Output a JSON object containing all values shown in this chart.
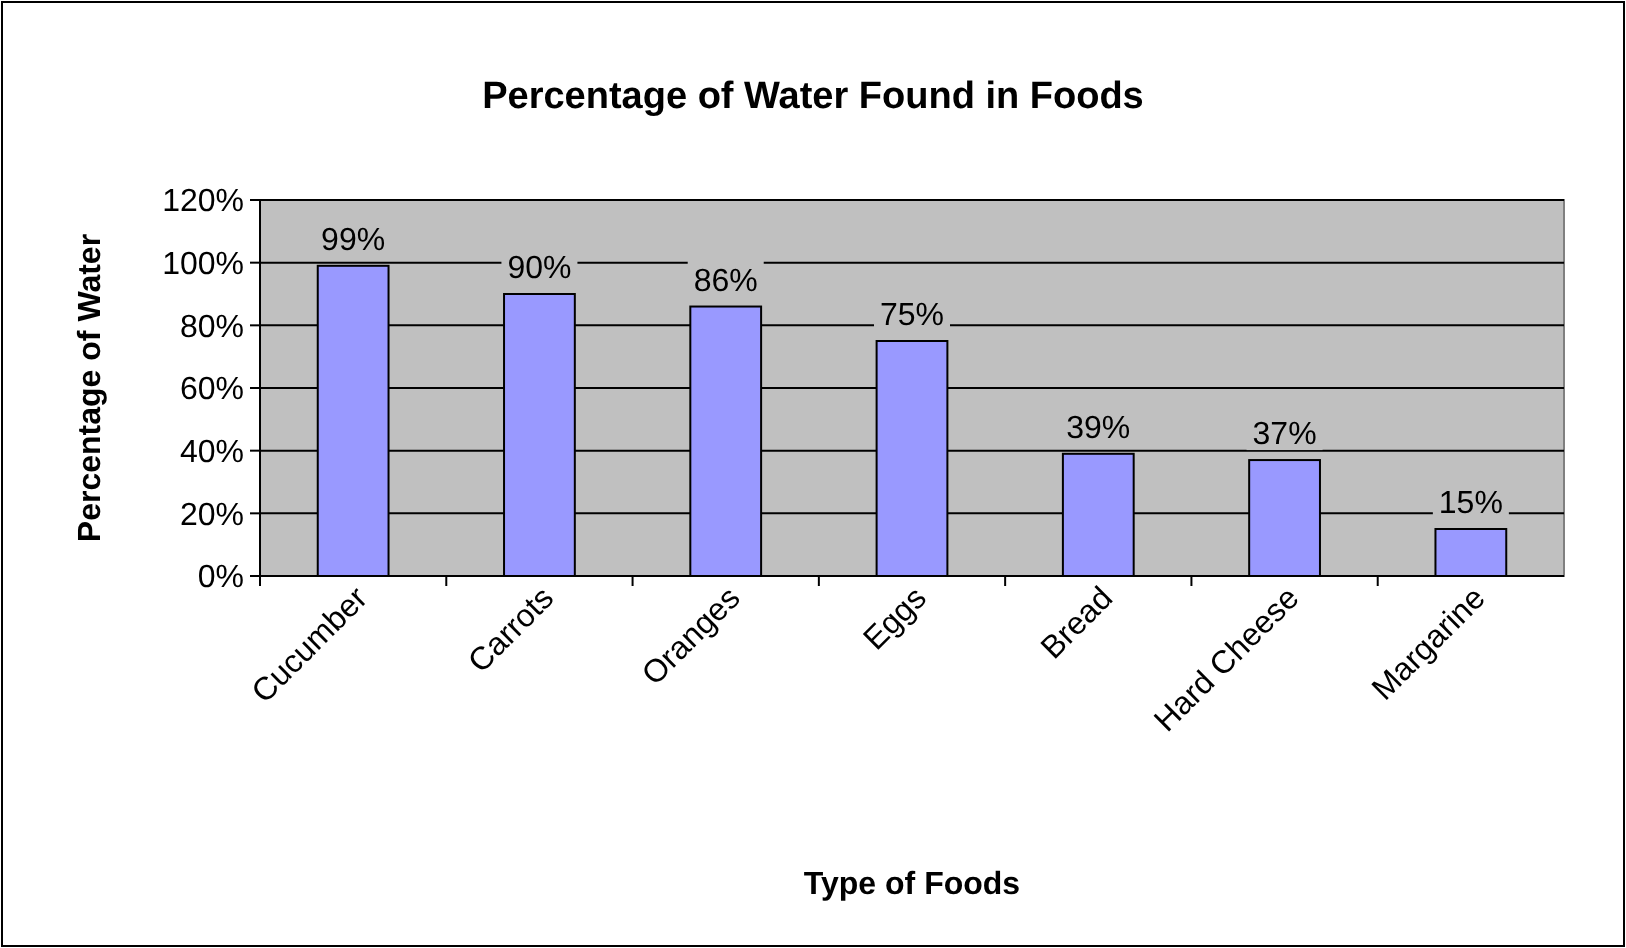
{
  "chart_data": {
    "type": "bar",
    "title": "Percentage of Water Found in Foods",
    "xlabel": "Type of Foods",
    "ylabel": "Percentage of Water",
    "categories": [
      "Cucumber",
      "Carrots",
      "Oranges",
      "Eggs",
      "Bread",
      "Hard Cheese",
      "Margarine"
    ],
    "values": [
      99,
      90,
      86,
      75,
      39,
      37,
      15
    ],
    "value_labels": [
      "99%",
      "90%",
      "86%",
      "75%",
      "39%",
      "37%",
      "15%"
    ],
    "color": "#9999ff",
    "ylim": [
      0,
      120
    ],
    "yticks": [
      {
        "value": 0,
        "label": "0%"
      },
      {
        "value": 20,
        "label": "20%"
      },
      {
        "value": 40,
        "label": "40%"
      },
      {
        "value": 60,
        "label": "60%"
      },
      {
        "value": 80,
        "label": "80%"
      },
      {
        "value": 100,
        "label": "100%"
      },
      {
        "value": 120,
        "label": "120%"
      }
    ],
    "grid": "y"
  }
}
